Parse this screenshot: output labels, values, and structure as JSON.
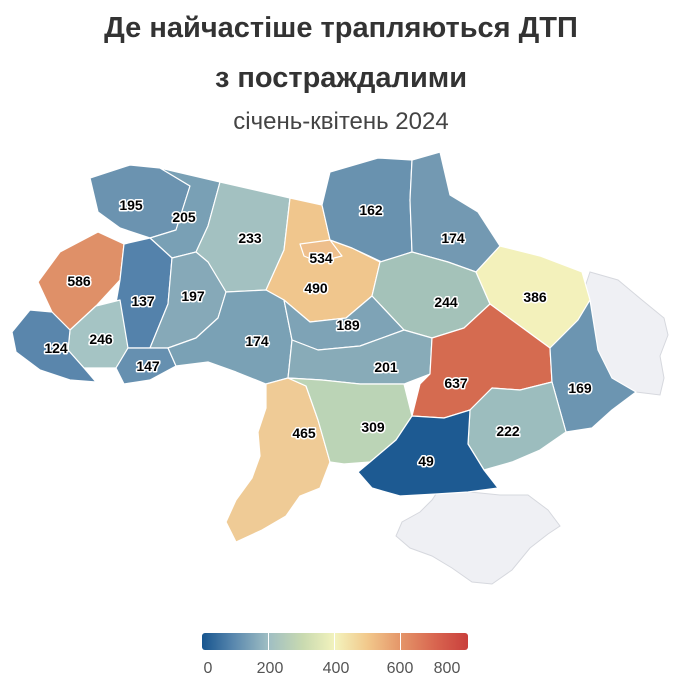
{
  "title_line1": "Де найчастіше трапляються ДТП",
  "title_line2": "з постраждалими",
  "subtitle": "січень-квітень 2024",
  "colors": {
    "scale": [
      "#17558f",
      "#5a88ae",
      "#9fbec3",
      "#f3f3bd",
      "#e49468",
      "#c93f3c"
    ],
    "no_data": "#eff0f4"
  },
  "regions": [
    {
      "value": "195"
    },
    {
      "value": "205"
    },
    {
      "value": "233"
    },
    {
      "value": "534"
    },
    {
      "value": "162"
    },
    {
      "value": "174"
    },
    {
      "value": "586"
    },
    {
      "value": "137"
    },
    {
      "value": "197"
    },
    {
      "value": "490"
    },
    {
      "value": "244"
    },
    {
      "value": "386"
    },
    {
      "value": "246"
    },
    {
      "value": "124"
    },
    {
      "value": "147"
    },
    {
      "value": "174"
    },
    {
      "value": "189"
    },
    {
      "value": "201"
    },
    {
      "value": "637"
    },
    {
      "value": "169"
    },
    {
      "value": "465"
    },
    {
      "value": "309"
    },
    {
      "value": "222"
    },
    {
      "value": "49"
    }
  ],
  "legend": {
    "min": 0,
    "max": 800,
    "ticks": [
      "0",
      "200",
      "400",
      "600",
      "800"
    ]
  }
}
